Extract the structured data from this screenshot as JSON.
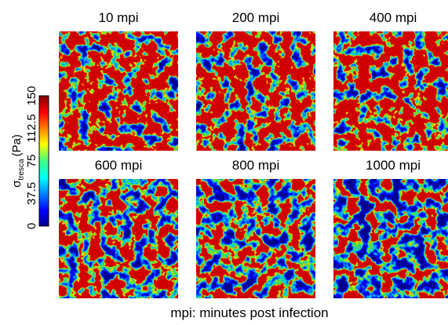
{
  "panels": [
    {
      "label": "10 mpi"
    },
    {
      "label": "200 mpi"
    },
    {
      "label": "400 mpi"
    },
    {
      "label": "600 mpi"
    },
    {
      "label": "800 mpi"
    },
    {
      "label": "1000 mpi"
    }
  ],
  "colorbar": {
    "symbol": "σ",
    "subscript": "tresca",
    "unit": "(Pa)",
    "ticks": [
      0,
      37.5,
      75,
      112.5,
      150
    ]
  },
  "caption": "mpi: minutes post infection"
}
